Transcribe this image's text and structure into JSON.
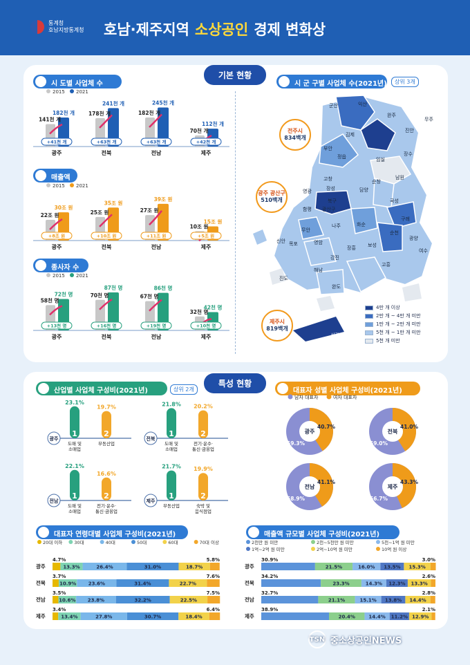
{
  "header": {
    "logo_line1": "통계청",
    "logo_line2": "호남지방통계청",
    "title_a": "호남·제주지역",
    "title_b": "소상공인",
    "title_c": "경제 변화상"
  },
  "sections": {
    "basic": "기본 현황",
    "special": "특성 현황"
  },
  "subtitles": {
    "businesses": "시 도별 사업체 수",
    "sales": "매출액",
    "employees": "종사자 수",
    "map": "시 군 구별 사업체 수(2021년)",
    "map_badge": "상위 3개",
    "industry": "산업별 사업체 구성비(2021년)",
    "industry_badge": "상위 2개",
    "gender": "대표자 성별 사업체 구성비(2021년)",
    "age": "대표자 연령대별 사업체 구성비(2021년)",
    "sales_scale": "매출액 규모별 사업체 구성비(2021년)"
  },
  "year_legend": {
    "y2015": "2015",
    "y2021": "2021"
  },
  "colors": {
    "primary": "#1f5fb4",
    "navy": "#1f4ea8",
    "orange": "#ef9b1a",
    "green": "#27a07e",
    "grey": "#c8c8c8",
    "purple": "#8a8fd2",
    "gold": "#f2a72a"
  },
  "chart_data": [
    {
      "type": "bar",
      "id": "businesses",
      "categories": [
        "광주",
        "전북",
        "전남",
        "제주"
      ],
      "series": [
        {
          "name": "2015",
          "values": [
            141,
            178,
            182,
            70
          ]
        },
        {
          "name": "2021",
          "values": [
            182,
            241,
            245,
            112
          ]
        }
      ],
      "value_labels_2015": [
        "141천 개",
        "178천 개",
        "182천 개",
        "70천 개"
      ],
      "value_labels_2021": [
        "182천 개",
        "241천 개",
        "245천 개",
        "112천 개"
      ],
      "increase_labels": [
        "41천 개",
        "63천 개",
        "63천 개",
        "42천 개"
      ]
    },
    {
      "type": "bar",
      "id": "sales",
      "categories": [
        "광주",
        "전북",
        "전남",
        "제주"
      ],
      "series": [
        {
          "name": "2015",
          "values": [
            22,
            25,
            27,
            10
          ]
        },
        {
          "name": "2021",
          "values": [
            30,
            35,
            39,
            15
          ]
        }
      ],
      "value_labels_2015": [
        "22조 원",
        "25조 원",
        "27조 원",
        "10조 원"
      ],
      "value_labels_2021": [
        "30조 원",
        "35조 원",
        "39조 원",
        "15조 원"
      ],
      "increase_labels": [
        "8조 원",
        "10조 원",
        "11조 원",
        "5조 원"
      ]
    },
    {
      "type": "bar",
      "id": "employees",
      "categories": [
        "광주",
        "전북",
        "전남",
        "제주"
      ],
      "series": [
        {
          "name": "2015",
          "values": [
            58,
            70,
            67,
            32
          ]
        },
        {
          "name": "2021",
          "values": [
            72,
            87,
            86,
            42
          ]
        }
      ],
      "value_labels_2015": [
        "58천 명",
        "70천 명",
        "67천 명",
        "32천 명"
      ],
      "value_labels_2021": [
        "72천 명",
        "87천 명",
        "86천 명",
        "42천 명"
      ],
      "increase_labels": [
        "13천 명",
        "16천 명",
        "19천 명",
        "10천 명"
      ]
    },
    {
      "type": "bar",
      "id": "industry",
      "groups": [
        {
          "region": "광주",
          "items": [
            {
              "rank": "1",
              "label": "도매 및 소매업",
              "value": 23.1
            },
            {
              "rank": "2",
              "label": "부동산업",
              "value": 19.7
            }
          ]
        },
        {
          "region": "전북",
          "items": [
            {
              "rank": "1",
              "label": "도매 및 소매업",
              "value": 21.8
            },
            {
              "rank": "2",
              "label": "전기·운수· 통신·금융업",
              "value": 20.2
            }
          ]
        },
        {
          "region": "전남",
          "items": [
            {
              "rank": "1",
              "label": "도매 및 소매업",
              "value": 22.1
            },
            {
              "rank": "2",
              "label": "전기·운수· 통신·금융업",
              "value": 16.6
            }
          ]
        },
        {
          "region": "제주",
          "items": [
            {
              "rank": "1",
              "label": "부동산업",
              "value": 21.7
            },
            {
              "rank": "2",
              "label": "숙박 및 음식점업",
              "value": 19.9
            }
          ]
        }
      ]
    },
    {
      "type": "pie",
      "id": "gender",
      "series_names": [
        "남자 대표자",
        "여자 대표자"
      ],
      "pies": [
        {
          "region": "광주",
          "values": [
            59.3,
            40.7
          ],
          "labels": [
            "59.3%",
            "40.7%"
          ]
        },
        {
          "region": "전북",
          "values": [
            59.0,
            41.0
          ],
          "labels": [
            "59.0%",
            "41.0%"
          ]
        },
        {
          "region": "전남",
          "values": [
            58.9,
            41.1
          ],
          "labels": [
            "58.9%",
            "41.1%"
          ]
        },
        {
          "region": "제주",
          "values": [
            56.7,
            43.3
          ],
          "labels": [
            "56.7%",
            "43.3%"
          ]
        }
      ]
    },
    {
      "type": "bar",
      "id": "age",
      "stacked": true,
      "horizontal": true,
      "categories": [
        "광주",
        "전북",
        "전남",
        "제주"
      ],
      "series_names": [
        "20대 이하",
        "30대",
        "40대",
        "50대",
        "60대",
        "70대 이상"
      ],
      "rows": [
        [
          4.7,
          13.3,
          26.4,
          31.0,
          18.7,
          5.8
        ],
        [
          3.7,
          10.9,
          23.6,
          31.4,
          22.7,
          7.6
        ],
        [
          3.5,
          10.6,
          23.8,
          32.2,
          22.5,
          7.5
        ],
        [
          3.4,
          13.4,
          27.8,
          30.7,
          18.4,
          6.4
        ]
      ],
      "row_labels": [
        [
          "4.7%",
          "13.3%",
          "26.4%",
          "31.0%",
          "18.7%",
          "5.8%"
        ],
        [
          "3.7%",
          "10.9%",
          "23.6%",
          "31.4%",
          "22.7%",
          "7.6%"
        ],
        [
          "3.5%",
          "10.6%",
          "23.8%",
          "32.2%",
          "22.5%",
          "7.5%"
        ],
        [
          "3.4%",
          "13.4%",
          "27.8%",
          "30.7%",
          "18.4%",
          "6.4%"
        ]
      ]
    },
    {
      "type": "bar",
      "id": "sales_scale",
      "stacked": true,
      "horizontal": true,
      "categories": [
        "광주",
        "전북",
        "전남",
        "제주"
      ],
      "series_names": [
        "2천만 원 미만",
        "2천~5천만 원 미만",
        "5천~1억 원 미만",
        "1억~2억 원 미만",
        "2억~10억 원 미만",
        "10억 원 이상"
      ],
      "rows": [
        [
          30.9,
          21.5,
          16.0,
          13.5,
          15.3,
          3.0
        ],
        [
          34.2,
          23.3,
          14.3,
          12.3,
          13.3,
          2.6
        ],
        [
          32.7,
          21.1,
          15.1,
          13.8,
          14.4,
          2.8
        ],
        [
          38.9,
          20.4,
          14.4,
          11.2,
          12.9,
          2.1
        ]
      ],
      "row_labels": [
        [
          "30.9%",
          "21.5%",
          "16.0%",
          "13.5%",
          "15.3%",
          "3.0%"
        ],
        [
          "34.2%",
          "23.3%",
          "14.3%",
          "12.3%",
          "13.3%",
          "2.6%"
        ],
        [
          "32.7%",
          "21.1%",
          "15.1%",
          "13.8%",
          "14.4%",
          "2.8%"
        ],
        [
          "38.9%",
          "20.4%",
          "14.4%",
          "11.2%",
          "12.9%",
          "2.1%"
        ]
      ]
    }
  ],
  "map": {
    "callouts": [
      {
        "name": "전주시",
        "value": "834백개"
      },
      {
        "name": "광주 광산구",
        "value": "510백개"
      },
      {
        "name": "제주시",
        "value": "819백개"
      }
    ],
    "regions": [
      "군산",
      "익산",
      "완주",
      "진안",
      "무주",
      "김제",
      "부안",
      "임실",
      "장수",
      "정읍",
      "순창",
      "남원",
      "고창",
      "영광",
      "장성",
      "담양",
      "곡성",
      "구례",
      "함평",
      "북구",
      "광산구",
      "나주",
      "화순",
      "광양",
      "순천",
      "무안",
      "영암",
      "장흥",
      "보성",
      "여수",
      "목포",
      "신안",
      "강진",
      "고흥",
      "해남",
      "진도",
      "완도",
      "서귀포"
    ],
    "legend": [
      "4만 개 이상",
      "2만 개 ~ 4만 개 미만",
      "1만 개 ~ 2만 개 미만",
      "5천 개 ~ 1만 개 미만",
      "5천 개 미만"
    ],
    "legend_colors": [
      "#1e3f8f",
      "#3a6cc0",
      "#6f9fdb",
      "#a9c8ec",
      "#e4e9ef"
    ]
  },
  "watermark": "중소상공인NEWS"
}
